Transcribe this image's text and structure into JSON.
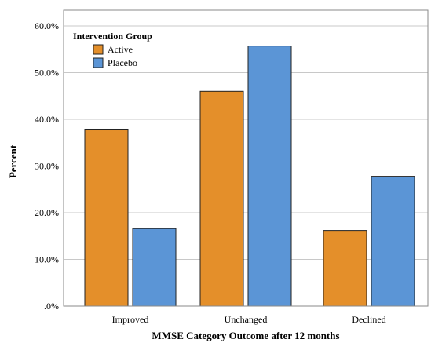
{
  "chart_data": {
    "type": "bar",
    "categories": [
      "Improved",
      "Unchanged",
      "Declined"
    ],
    "series": [
      {
        "name": "Active",
        "values": [
          37.9,
          46.0,
          16.2
        ],
        "color": "#E48F2A"
      },
      {
        "name": "Placebo",
        "values": [
          16.6,
          55.7,
          27.8
        ],
        "color": "#5B95D6"
      }
    ],
    "title": "",
    "xlabel": "MMSE Category Outcome after 12 months",
    "ylabel": "Percent",
    "ylim": [
      0,
      60
    ],
    "yticks": [
      0,
      10,
      20,
      30,
      40,
      50,
      60
    ],
    "ytick_labels": [
      ".0%",
      "10.0%",
      "20.0%",
      "30.0%",
      "40.0%",
      "50.0%",
      "60.0%"
    ],
    "legend": {
      "title": "Intervention Group",
      "position": "top-left"
    },
    "grid": true,
    "gridline_color": "#C8C8C8",
    "bar_edge_color": "#222222"
  }
}
